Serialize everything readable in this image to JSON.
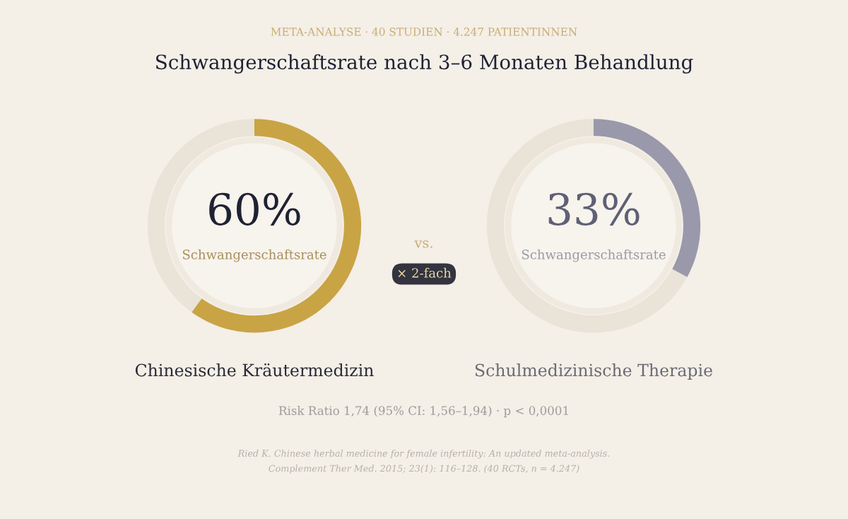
{
  "chart_data": [
    {
      "type": "donut",
      "title": "Schwangerschaftsrate nach 3–6 Monaten Behandlung",
      "subtitle": "META-ANALYSE · 40 STUDIEN · 4.247 PATIENTINNEN",
      "categories": [
        null,
        null
      ],
      "values": [
        60,
        40
      ],
      "colors": [
        "#c9a445",
        "#e9e3d8"
      ],
      "value_labels": [
        "60%",
        null
      ],
      "xlabel": "Chinesische Kräutermedizin",
      "annotations": [
        "Schwangerschaftsrate",
        "vs.",
        "× 2-fach",
        "Risk Ratio 1,74 (95% CI: 1,56–1,94) · p < 0,0001",
        "Ried K. Chinese herbal medicine for female infertility: An updated meta-analysis.",
        "Complement Ther Med. 2015; 23(1): 116–128. (40 RCTs, n = 4.247)"
      ]
    },
    {
      "type": "donut",
      "categories": [
        null,
        null
      ],
      "values": [
        33,
        67
      ],
      "colors": [
        "#9a98ab",
        "#e9e3d8"
      ],
      "value_labels": [
        "33%",
        null
      ],
      "xlabel": "Schulmedizinische Therapie",
      "annotations": [
        "Schwangerschaftsrate"
      ]
    }
  ]
}
